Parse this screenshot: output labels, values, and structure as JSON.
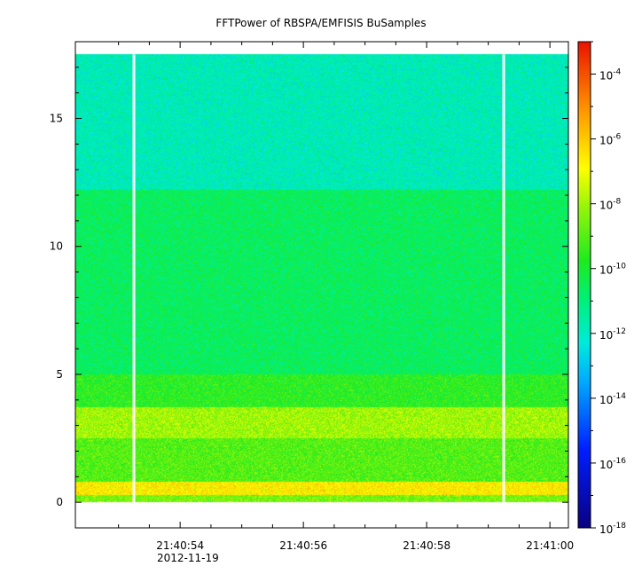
{
  "chart_data": {
    "type": "heatmap",
    "title": "FFTPower of RBSPA/EMFISIS  BuSamples",
    "xlabel": "",
    "ylabel": "",
    "x_tick_labels": [
      "21:40:54",
      "21:40:56",
      "21:40:58",
      "21:41:00"
    ],
    "x_date_label": "2012-11-19",
    "y_ticks": [
      0,
      5,
      10,
      15
    ],
    "ylim": [
      -1,
      18
    ],
    "data_ylim": [
      0,
      17.5
    ],
    "x_range_seconds": [
      52.3,
      60.3
    ],
    "gaps_seconds": [
      53.25,
      59.25
    ],
    "colorbar": {
      "scale": "log",
      "range": [
        1e-18,
        0.001
      ],
      "ticks": [
        {
          "base": "10",
          "exp": "-4"
        },
        {
          "base": "10",
          "exp": "-6"
        },
        {
          "base": "10",
          "exp": "-8"
        },
        {
          "base": "10",
          "exp": "-10"
        },
        {
          "base": "10",
          "exp": "-12"
        },
        {
          "base": "10",
          "exp": "-14"
        },
        {
          "base": "10",
          "exp": "-16"
        },
        {
          "base": "10",
          "exp": "-18"
        }
      ],
      "tick_values": [
        -4,
        -6,
        -8,
        -10,
        -12,
        -14,
        -16,
        -18
      ]
    },
    "spectral_bands": [
      {
        "y_range": [
          0,
          0.3
        ],
        "log_power": -8.5
      },
      {
        "y_range": [
          0.3,
          0.8
        ],
        "log_power": -6.6
      },
      {
        "y_range": [
          0.8,
          2.5
        ],
        "log_power": -9.0
      },
      {
        "y_range": [
          2.5,
          3.7
        ],
        "log_power": -8.0
      },
      {
        "y_range": [
          3.7,
          5.0
        ],
        "log_power": -9.6
      },
      {
        "y_range": [
          5.0,
          12.2
        ],
        "log_power": -10.6
      },
      {
        "y_range": [
          12.2,
          17.5
        ],
        "log_power": -11.8
      }
    ],
    "grid": false
  }
}
